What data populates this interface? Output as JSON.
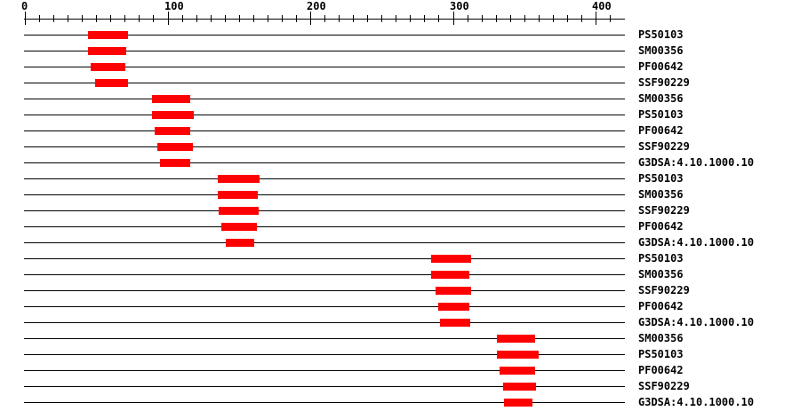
{
  "colors": {
    "background": "#ffffff",
    "bar": "#ff0000",
    "line": "#000000",
    "text": "#000000"
  },
  "chart_data": {
    "type": "bar",
    "subtype": "horizontal-interval-match-plot",
    "description": "Protein signature matches drawn as red intervals along a residue axis, one signature accession per row",
    "orientation": "horizontal",
    "title": "",
    "xlabel": "",
    "ylabel": "",
    "legend": "none",
    "grid": false,
    "x_axis": {
      "min": 0,
      "max": 420,
      "major_ticks": [
        0,
        100,
        200,
        300,
        400
      ],
      "major_tick_labels": [
        "0",
        "100",
        "200",
        "300",
        "400"
      ],
      "minor_tick_interval": 10
    },
    "rows": [
      {
        "label": "PS50103",
        "start": 44,
        "end": 72
      },
      {
        "label": "SM00356",
        "start": 44,
        "end": 71
      },
      {
        "label": "PF00642",
        "start": 46,
        "end": 70
      },
      {
        "label": "SSF90229",
        "start": 49,
        "end": 72
      },
      {
        "label": "SM00356",
        "start": 89,
        "end": 116
      },
      {
        "label": "PS50103",
        "start": 89,
        "end": 118
      },
      {
        "label": "PF00642",
        "start": 91,
        "end": 116
      },
      {
        "label": "SSF90229",
        "start": 93,
        "end": 118
      },
      {
        "label": "G3DSA:4.10.1000.10",
        "start": 95,
        "end": 116
      },
      {
        "label": "PS50103",
        "start": 135,
        "end": 164
      },
      {
        "label": "SM00356",
        "start": 135,
        "end": 163
      },
      {
        "label": "SSF90229",
        "start": 136,
        "end": 164
      },
      {
        "label": "PF00642",
        "start": 138,
        "end": 163
      },
      {
        "label": "G3DSA:4.10.1000.10",
        "start": 141,
        "end": 161
      },
      {
        "label": "PS50103",
        "start": 285,
        "end": 313
      },
      {
        "label": "SM00356",
        "start": 285,
        "end": 312
      },
      {
        "label": "SSF90229",
        "start": 288,
        "end": 313
      },
      {
        "label": "PF00642",
        "start": 290,
        "end": 312
      },
      {
        "label": "G3DSA:4.10.1000.10",
        "start": 291,
        "end": 312
      },
      {
        "label": "SM00356",
        "start": 331,
        "end": 358
      },
      {
        "label": "PS50103",
        "start": 331,
        "end": 360
      },
      {
        "label": "PF00642",
        "start": 333,
        "end": 358
      },
      {
        "label": "SSF90229",
        "start": 335,
        "end": 358
      },
      {
        "label": "G3DSA:4.10.1000.10",
        "start": 336,
        "end": 356
      }
    ]
  }
}
